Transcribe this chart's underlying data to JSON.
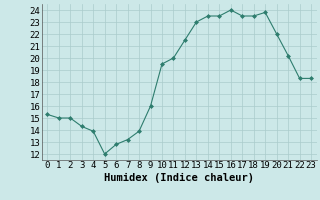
{
  "x": [
    0,
    1,
    2,
    3,
    4,
    5,
    6,
    7,
    8,
    9,
    10,
    11,
    12,
    13,
    14,
    15,
    16,
    17,
    18,
    19,
    20,
    21,
    22,
    23
  ],
  "y": [
    15.3,
    15.0,
    15.0,
    14.3,
    13.9,
    12.0,
    12.8,
    13.2,
    13.9,
    16.0,
    19.5,
    20.0,
    21.5,
    23.0,
    23.5,
    23.5,
    24.0,
    23.5,
    23.5,
    23.8,
    22.0,
    20.2,
    18.3,
    18.3
  ],
  "line_color": "#2e7d6e",
  "marker": "D",
  "marker_size": 2,
  "bg_color": "#cce8e8",
  "grid_color": "#aacccc",
  "xlabel": "Humidex (Indice chaleur)",
  "xlim": [
    -0.5,
    23.5
  ],
  "ylim": [
    11.5,
    24.5
  ],
  "yticks": [
    12,
    13,
    14,
    15,
    16,
    17,
    18,
    19,
    20,
    21,
    22,
    23,
    24
  ],
  "xticks": [
    0,
    1,
    2,
    3,
    4,
    5,
    6,
    7,
    8,
    9,
    10,
    11,
    12,
    13,
    14,
    15,
    16,
    17,
    18,
    19,
    20,
    21,
    22,
    23
  ],
  "tick_fontsize": 6.5,
  "xlabel_fontsize": 7.5
}
